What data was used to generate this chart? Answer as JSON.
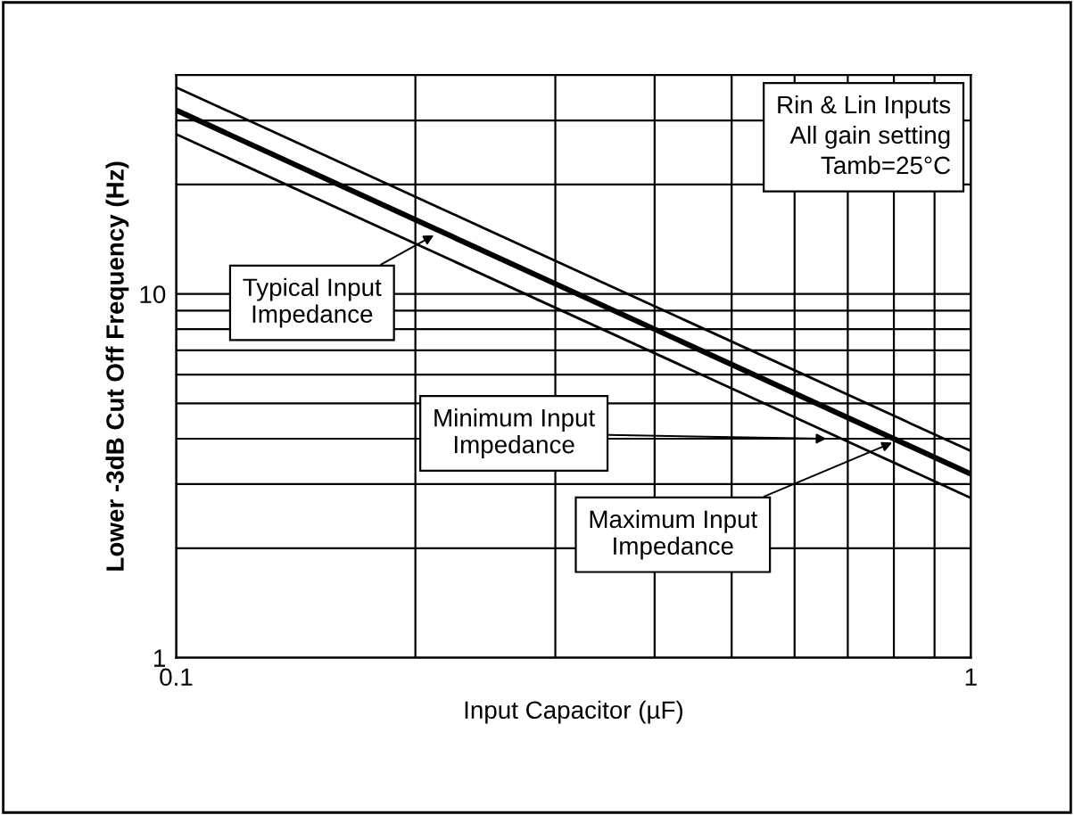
{
  "chart_data": {
    "type": "line",
    "xlabel": "Input Capacitor (µF)",
    "ylabel": "Lower -3dB Cut Off Frequency (Hz)",
    "log": "xy",
    "xlim": [
      0.1,
      1
    ],
    "ylim": [
      1,
      40
    ],
    "xticks": [
      0.1,
      {
        "value": 0.2,
        "label": null
      },
      {
        "value": 0.3,
        "label": null
      },
      {
        "value": 0.4,
        "label": null
      },
      {
        "value": 0.5,
        "label": null
      },
      {
        "value": 0.6,
        "label": null
      },
      {
        "value": 0.7,
        "label": null
      },
      {
        "value": 0.8,
        "label": null
      },
      {
        "value": 0.9,
        "label": null
      },
      1
    ],
    "yticks": [
      1,
      {
        "value": 2,
        "label": null
      },
      {
        "value": 3,
        "label": null
      },
      {
        "value": 4,
        "label": null
      },
      {
        "value": 5,
        "label": null
      },
      {
        "value": 6,
        "label": null
      },
      {
        "value": 7,
        "label": null
      },
      {
        "value": 8,
        "label": null
      },
      {
        "value": 9,
        "label": null
      },
      10,
      {
        "value": 20,
        "label": null
      },
      {
        "value": 30,
        "label": null
      }
    ],
    "grid": true,
    "x": [
      0.1,
      1
    ],
    "series": [
      {
        "color": "#000000",
        "values": [
          37,
          3.7
        ]
      },
      {
        "color": "#000000",
        "values": [
          32,
          3.2
        ]
      },
      {
        "color": "#000000",
        "values": [
          27.5,
          2.75
        ]
      }
    ],
    "annotations": [
      {
        "text": "Typical Input\nImpedance",
        "x": 0.211,
        "y": 14.5
      },
      {
        "text": "Minimum Input\nImpedance",
        "x": 0.658,
        "y": 4.0
      },
      {
        "text": "Maximum Input\nImpedance",
        "x": 0.796,
        "y": 3.9
      },
      "Rin & Lin Inputs\nAll gain setting\nTamb=25°C"
    ]
  }
}
